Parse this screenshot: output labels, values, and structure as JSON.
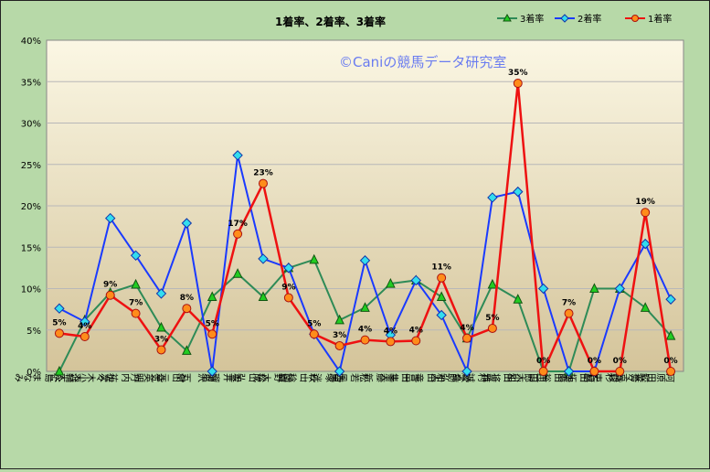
{
  "chart_data": {
    "type": "line",
    "title": "1着率、2着率、3着率",
    "watermark": "©Caniの競馬データ研究室",
    "y_ticks": [
      "0%",
      "5%",
      "10%",
      "15%",
      "20%",
      "25%",
      "30%",
      "35%",
      "40%"
    ],
    "ylim": [
      0,
      40
    ],
    "grid": true,
    "legend_position": "top-right",
    "categories": [
      "永島 まなみ",
      "小沢 大仁",
      "佐々木 大輔",
      "丹内 祐次",
      "幸 英明",
      "丸山 元気",
      "菊沢 一樹",
      "坂井 瑠星",
      "松山 弘平",
      "団野 大成",
      "秋山 稔樹",
      "西塚 洸二",
      "松若 風馬",
      "斎藤 新",
      "吉田 隼人",
      "和田 竜二",
      "鮫島 弘人",
      "吉村 誠之助",
      "川田 将雅",
      "角田 大和",
      "柴田 裕一郎",
      "石田 拓郎",
      "高杉 吏麒",
      "鮫島 克駿",
      "河原田 菜々"
    ],
    "series": [
      {
        "name": "3着率",
        "color": "#2e8b57",
        "marker": "triangle",
        "marker_fill": "#22cc22",
        "values": [
          0,
          6.2,
          9.5,
          10.5,
          5.3,
          2.5,
          9.0,
          11.8,
          9.0,
          12.5,
          13.5,
          6.2,
          7.7,
          10.6,
          11.0,
          9.0,
          4.0,
          10.5,
          8.7,
          0,
          0,
          10.0,
          10.0,
          7.7,
          4.3
        ]
      },
      {
        "name": "2着率",
        "color": "#1a3aff",
        "marker": "diamond",
        "marker_fill": "#33ddee",
        "values": [
          7.6,
          6.0,
          18.5,
          14.0,
          9.4,
          17.9,
          0,
          26.1,
          13.6,
          12.5,
          4.5,
          0,
          13.4,
          4.4,
          11.0,
          6.8,
          0,
          21.0,
          21.7,
          10.0,
          0,
          0,
          10.0,
          15.4,
          8.7
        ]
      },
      {
        "name": "1着率",
        "color": "#ee1111",
        "marker": "circle",
        "marker_fill": "#ff8c1a",
        "values": [
          4.6,
          4.2,
          9.2,
          7.0,
          2.6,
          7.6,
          4.5,
          16.6,
          22.7,
          8.9,
          4.5,
          3.1,
          3.8,
          3.6,
          3.7,
          11.3,
          4.0,
          5.2,
          34.8,
          0,
          7.0,
          0,
          0,
          19.2,
          0
        ]
      }
    ],
    "data_labels_1st": [
      "5%",
      "4%",
      "9%",
      "7%",
      "3%",
      "8%",
      "5%",
      "17%",
      "23%",
      "9%",
      "5%",
      "3%",
      "4%",
      "4%",
      "4%",
      "11%",
      "4%",
      "5%",
      "35%",
      "0%",
      "7%",
      "0%",
      "0%",
      "19%",
      "0%"
    ]
  }
}
